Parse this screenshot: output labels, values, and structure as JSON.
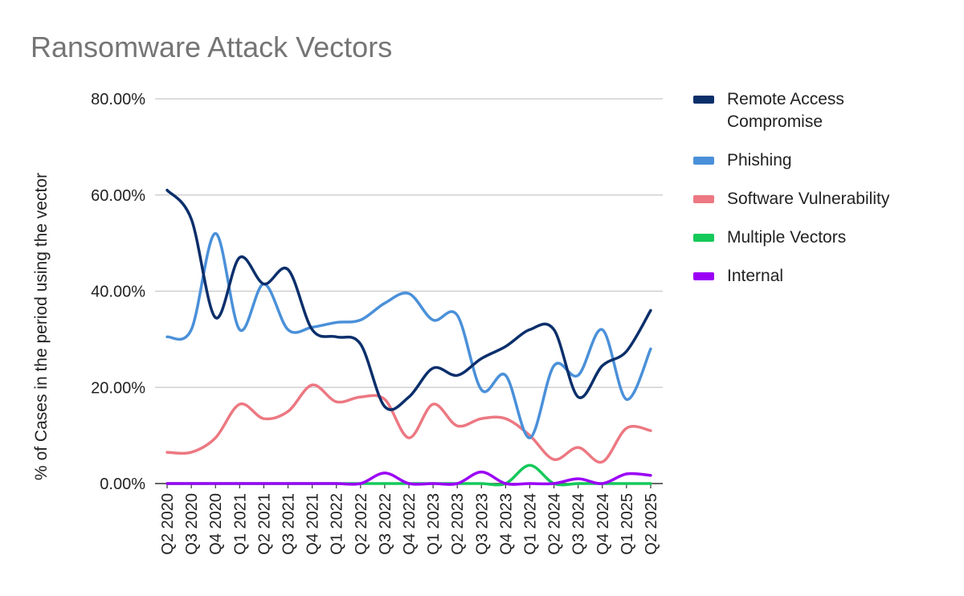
{
  "chart_data": {
    "type": "line",
    "title": "Ransomware Attack Vectors",
    "ylabel": "% of Cases in the period using the vector",
    "xlabel": "",
    "ylim": [
      0,
      80
    ],
    "yticks": [
      "0.00%",
      "20.00%",
      "40.00%",
      "60.00%",
      "80.00%"
    ],
    "grid": true,
    "legend_position": "right",
    "categories": [
      "Q2 2020",
      "Q3 2020",
      "Q4 2020",
      "Q1 2021",
      "Q2 2021",
      "Q3 2021",
      "Q4 2021",
      "Q1 2022",
      "Q2 2022",
      "Q3 2022",
      "Q4 2022",
      "Q1 2023",
      "Q2 2023",
      "Q3 2023",
      "Q4 2023",
      "Q1 2024",
      "Q2 2024",
      "Q3 2024",
      "Q4 2024",
      "Q1 2025",
      "Q2 2025"
    ],
    "series": [
      {
        "name": "Remote Access Compromise",
        "color": "#0b2f6b",
        "values": [
          61,
          55,
          34.5,
          47,
          41.5,
          44.5,
          32,
          30.5,
          29,
          16,
          18,
          24,
          22.5,
          26,
          28.5,
          32,
          32,
          18,
          24.5,
          27.5,
          36
        ]
      },
      {
        "name": "Phishing",
        "color": "#4a90d9",
        "values": [
          30.5,
          32,
          52,
          32,
          41.5,
          32,
          32.5,
          33.5,
          34,
          37.5,
          39.5,
          34,
          35,
          19.5,
          22.5,
          9.5,
          24.5,
          22.5,
          32,
          17.5,
          28
        ]
      },
      {
        "name": "Software Vulnerability",
        "color": "#ec7882",
        "values": [
          6.5,
          6.5,
          9.5,
          16.5,
          13.5,
          15,
          20.5,
          17,
          18,
          17.5,
          9.5,
          16.5,
          12,
          13.5,
          13.5,
          10,
          5,
          7.5,
          4.5,
          11.5,
          11
        ]
      },
      {
        "name": "Multiple Vectors",
        "color": "#15c95a",
        "values": [
          0,
          0,
          0,
          0,
          0,
          0,
          0,
          0,
          0,
          0,
          0,
          0,
          0,
          0,
          0,
          3.8,
          0,
          0,
          0,
          0,
          0
        ]
      },
      {
        "name": "Internal",
        "color": "#9b00f5",
        "values": [
          0,
          0,
          0,
          0,
          0,
          0,
          0,
          0,
          0,
          2.2,
          0,
          0,
          0,
          2.4,
          0,
          0,
          0,
          1,
          0,
          2,
          1.7
        ]
      }
    ]
  }
}
